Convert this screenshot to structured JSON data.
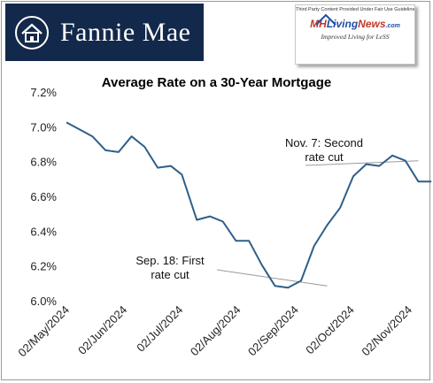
{
  "header": {
    "brand_name": "Fannie Mae",
    "brand_color": "#13294b",
    "logo_icon": "house-icon"
  },
  "badge": {
    "note": "Third Party Content Provided Under Fair Use Guidelines.",
    "logo_mh": "MH",
    "logo_living": "Living",
    "logo_news": "News",
    "logo_com": ".com",
    "tagline": "Improved Living for LeSS"
  },
  "chart_data": {
    "type": "line",
    "title": "Average Rate on a 30-Year Mortgage",
    "xlabel": "",
    "ylabel": "",
    "ylim": [
      6.0,
      7.2
    ],
    "y_ticks": [
      "6.0%",
      "6.2%",
      "6.4%",
      "6.6%",
      "6.8%",
      "7.0%",
      "7.2%"
    ],
    "y_tick_values": [
      6.0,
      6.2,
      6.4,
      6.6,
      6.8,
      7.0,
      7.2
    ],
    "x_ticks": [
      "02/May/2024",
      "02/Jun/2024",
      "02/Jul/2024",
      "02/Aug/2024",
      "02/Sep/2024",
      "02/Oct/2024",
      "02/Nov/2024"
    ],
    "grid": false,
    "line_color": "#2e5f8a",
    "series": [
      {
        "x": [
          "2024-05-02",
          "2024-05-09",
          "2024-05-16",
          "2024-05-23",
          "2024-05-30",
          "2024-06-06",
          "2024-06-13",
          "2024-06-20",
          "2024-06-27",
          "2024-07-03",
          "2024-07-11",
          "2024-07-18",
          "2024-07-25",
          "2024-08-01",
          "2024-08-08",
          "2024-08-15",
          "2024-08-22",
          "2024-08-29",
          "2024-09-05",
          "2024-09-12",
          "2024-09-19",
          "2024-09-26",
          "2024-10-03",
          "2024-10-10",
          "2024-10-17",
          "2024-10-24",
          "2024-10-31",
          "2024-11-07",
          "2024-11-14"
        ],
        "values": [
          7.03,
          6.99,
          6.95,
          6.87,
          6.86,
          6.95,
          6.89,
          6.77,
          6.78,
          6.73,
          6.47,
          6.49,
          6.46,
          6.35,
          6.35,
          6.21,
          6.09,
          6.08,
          6.12,
          6.32,
          6.44,
          6.54,
          6.72,
          6.79,
          6.78,
          6.84,
          6.81,
          6.69,
          6.69
        ]
      }
    ],
    "annotations": [
      {
        "text_lines": [
          "Sep. 18: First",
          "rate cut"
        ],
        "date": "2024-09-19",
        "value": 6.08
      },
      {
        "text_lines": [
          "Nov. 7: Second",
          "rate cut"
        ],
        "date": "2024-11-07",
        "value": 6.8
      }
    ]
  }
}
